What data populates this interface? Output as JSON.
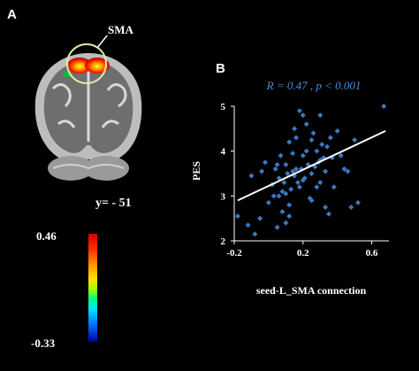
{
  "figure": {
    "panel_a_label": "A",
    "panel_b_label": "B",
    "region_label": "SMA",
    "slice_text": "y= - 51",
    "colorbar": {
      "max_label": "0.46",
      "min_label": "-0.33"
    }
  },
  "chart_data": {
    "type": "scatter",
    "annotation": "R = 0.47 , p < 0.001",
    "xlabel": "seed-L_SMA connection",
    "ylabel": "PES",
    "xlim": [
      -0.2,
      0.7
    ],
    "ylim": [
      2,
      5
    ],
    "xticks": [
      "-0.2",
      "0.2",
      "0.6"
    ],
    "yticks": [
      "2",
      "3",
      "4",
      "5"
    ],
    "point_color": "#3a78c2",
    "fit_line": {
      "x": [
        -0.18,
        0.68
      ],
      "y": [
        2.9,
        4.45
      ],
      "color": "#ffffff"
    },
    "x": [
      -0.18,
      -0.12,
      -0.08,
      -0.05,
      -0.04,
      -0.02,
      0.0,
      0.02,
      0.03,
      0.04,
      0.05,
      0.06,
      0.07,
      0.08,
      0.08,
      0.09,
      0.1,
      0.1,
      0.11,
      0.12,
      0.12,
      0.13,
      0.14,
      0.15,
      0.15,
      0.16,
      0.17,
      0.18,
      0.18,
      0.19,
      0.2,
      0.2,
      0.21,
      0.22,
      0.22,
      0.23,
      0.24,
      0.25,
      0.25,
      0.26,
      0.27,
      0.28,
      0.29,
      0.3,
      0.3,
      0.31,
      0.32,
      0.33,
      0.34,
      0.35,
      0.36,
      0.37,
      0.38,
      0.4,
      0.42,
      0.44,
      0.46,
      0.48,
      0.5,
      0.52,
      0.67,
      0.1,
      0.14,
      0.2,
      0.3,
      0.05,
      -0.1,
      0.25,
      0.33,
      0.16,
      0.06,
      0.12,
      0.28
    ],
    "y": [
      2.55,
      2.35,
      2.15,
      2.5,
      3.55,
      3.75,
      2.85,
      3.25,
      3.0,
      3.6,
      2.3,
      3.4,
      3.9,
      3.1,
      2.65,
      3.3,
      2.4,
      3.7,
      3.5,
      4.2,
      2.8,
      3.15,
      3.95,
      3.45,
      4.5,
      4.3,
      3.3,
      4.9,
      3.2,
      3.6,
      3.9,
      4.8,
      3.4,
      4.6,
      4.0,
      3.7,
      2.95,
      4.25,
      3.5,
      4.4,
      3.65,
      4.0,
      3.75,
      4.8,
      3.3,
      4.15,
      3.85,
      3.55,
      4.1,
      2.6,
      4.3,
      3.85,
      3.2,
      4.45,
      3.9,
      3.6,
      3.55,
      2.75,
      4.25,
      2.85,
      5.0,
      3.05,
      3.55,
      3.35,
      3.8,
      3.7,
      3.45,
      2.9,
      2.75,
      3.6,
      3.0,
      2.55,
      3.2
    ]
  }
}
